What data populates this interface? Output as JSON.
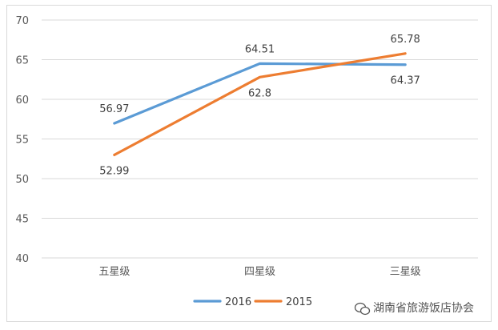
{
  "chart_data": {
    "type": "line",
    "categories": [
      "五星级",
      "四星级",
      "三星级"
    ],
    "series": [
      {
        "name": "2016",
        "values": [
          56.97,
          64.51,
          64.37
        ],
        "color": "#5b9bd5"
      },
      {
        "name": "2015",
        "values": [
          52.99,
          62.8,
          65.78
        ],
        "color": "#ed7d31"
      }
    ],
    "ylim": [
      40,
      70
    ],
    "yticks": [
      40,
      45,
      50,
      55,
      60,
      65,
      70
    ],
    "grid": true,
    "legend": "bottom",
    "title": "",
    "xlabel": "",
    "ylabel": ""
  },
  "watermark": {
    "text": "湖南省旅游饭店协会",
    "icon": "wechat-icon"
  }
}
